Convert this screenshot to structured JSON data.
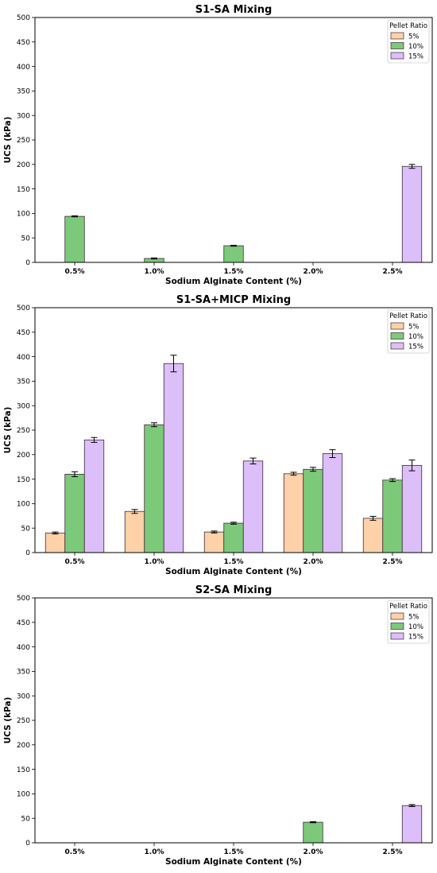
{
  "chart_data": [
    {
      "type": "bar",
      "title": "S1-SA Mixing",
      "xlabel": "Sodium Alginate Content (%)",
      "ylabel": "UCS (kPa)",
      "ylim": [
        0,
        500
      ],
      "yticks": [
        0,
        50,
        100,
        150,
        200,
        250,
        300,
        350,
        400,
        450,
        500
      ],
      "categories": [
        "0.5%",
        "1.0%",
        "1.5%",
        "2.0%",
        "2.5%"
      ],
      "legend_title": "Pellet Ratio",
      "legend_position": "top-right",
      "series": [
        {
          "name": "5%",
          "color": "#ffd1a8",
          "values": [
            0,
            0,
            0,
            0,
            0
          ],
          "errors": [
            0,
            0,
            0,
            0,
            0
          ]
        },
        {
          "name": "10%",
          "color": "#7dc97a",
          "values": [
            94,
            8,
            34,
            0,
            0
          ],
          "errors": [
            1,
            1,
            1,
            0,
            0
          ]
        },
        {
          "name": "15%",
          "color": "#dcbff8",
          "values": [
            0,
            0,
            0,
            0,
            196
          ],
          "errors": [
            0,
            0,
            0,
            0,
            4
          ]
        }
      ]
    },
    {
      "type": "bar",
      "title": "S1-SA+MICP Mixing",
      "xlabel": "Sodium Alginate Content (%)",
      "ylabel": "UCS (kPa)",
      "ylim": [
        0,
        500
      ],
      "yticks": [
        0,
        50,
        100,
        150,
        200,
        250,
        300,
        350,
        400,
        450,
        500
      ],
      "categories": [
        "0.5%",
        "1.0%",
        "1.5%",
        "2.0%",
        "2.5%"
      ],
      "legend_title": "Pellet Ratio",
      "legend_position": "top-right",
      "series": [
        {
          "name": "5%",
          "color": "#ffd1a8",
          "values": [
            40,
            84,
            42,
            161,
            70
          ],
          "errors": [
            2,
            4,
            2,
            3,
            4
          ]
        },
        {
          "name": "10%",
          "color": "#7dc97a",
          "values": [
            160,
            261,
            60,
            170,
            148
          ],
          "errors": [
            5,
            4,
            2,
            4,
            3
          ]
        },
        {
          "name": "15%",
          "color": "#dcbff8",
          "values": [
            230,
            386,
            187,
            202,
            178
          ],
          "errors": [
            5,
            17,
            6,
            8,
            11
          ]
        }
      ]
    },
    {
      "type": "bar",
      "title": "S2-SA Mixing",
      "xlabel": "Sodium Alginate Content (%)",
      "ylabel": "UCS (kPa)",
      "ylim": [
        0,
        500
      ],
      "yticks": [
        0,
        50,
        100,
        150,
        200,
        250,
        300,
        350,
        400,
        450,
        500
      ],
      "categories": [
        "0.5%",
        "1.0%",
        "1.5%",
        "2.0%",
        "2.5%"
      ],
      "legend_title": "Pellet Ratio",
      "legend_position": "top-right",
      "series": [
        {
          "name": "5%",
          "color": "#ffd1a8",
          "values": [
            0,
            0,
            0,
            0,
            0
          ],
          "errors": [
            0,
            0,
            0,
            0,
            0
          ]
        },
        {
          "name": "10%",
          "color": "#7dc97a",
          "values": [
            0,
            0,
            0,
            42,
            0
          ],
          "errors": [
            0,
            0,
            0,
            1,
            0
          ]
        },
        {
          "name": "15%",
          "color": "#dcbff8",
          "values": [
            0,
            0,
            0,
            0,
            76
          ],
          "errors": [
            0,
            0,
            0,
            0,
            2
          ]
        }
      ]
    }
  ]
}
